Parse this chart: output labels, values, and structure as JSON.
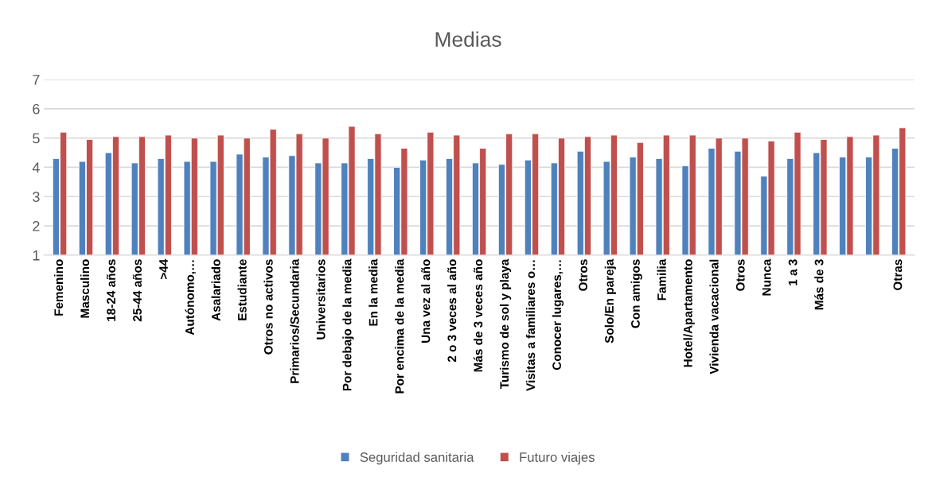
{
  "chart_data": {
    "type": "bar",
    "title": "Medias",
    "categories": [
      "Femenino",
      "Masculino",
      "18-24 años",
      "25-44 años",
      ">44",
      "Autónomo,…",
      "Asalariado",
      "Estudiante",
      "Otros no activos",
      "Primarios/Secundaria",
      "Universitarios",
      "Por debajo de la media",
      "En la media",
      "Por encima de la media",
      "Una vez al año",
      "2 o 3 veces al año",
      "Más de 3 veces año",
      "Turismo de sol y playa",
      "Visitas a familiares o…",
      "Conocer lugares,…",
      "Otros",
      "Solo/En pareja",
      "Con amigos",
      "Familia",
      "Hotel/Apartamento",
      "Vivienda vacacional",
      "Otros",
      "Nunca",
      "1 a 3",
      "Más de 3",
      null,
      null,
      "Otras"
    ],
    "series": [
      {
        "name": "Seguridad sanitaria",
        "color": "#4f81bd",
        "values": [
          4.3,
          4.2,
          4.5,
          4.15,
          4.3,
          4.2,
          4.2,
          4.45,
          4.35,
          4.4,
          4.15,
          4.15,
          4.3,
          4.0,
          4.25,
          4.3,
          4.15,
          4.1,
          4.25,
          4.15,
          4.55,
          4.2,
          4.35,
          4.3,
          4.05,
          4.65,
          4.55,
          3.7,
          4.3,
          4.5,
          4.35,
          4.35,
          4.65
        ]
      },
      {
        "name": "Futuro viajes",
        "color": "#c0504d",
        "values": [
          5.2,
          4.95,
          5.05,
          5.05,
          5.1,
          5.0,
          5.1,
          5.0,
          5.3,
          5.15,
          5.0,
          5.4,
          5.15,
          4.65,
          5.2,
          5.1,
          4.65,
          5.15,
          5.15,
          5.0,
          5.05,
          5.1,
          4.85,
          5.1,
          5.1,
          5.0,
          5.0,
          4.9,
          5.2,
          4.95,
          5.05,
          5.1,
          5.35
        ]
      }
    ],
    "ylim": [
      1,
      7
    ],
    "yticks": [
      1,
      2,
      3,
      4,
      5,
      6,
      7
    ],
    "grid": "y",
    "legend": "bottom"
  }
}
